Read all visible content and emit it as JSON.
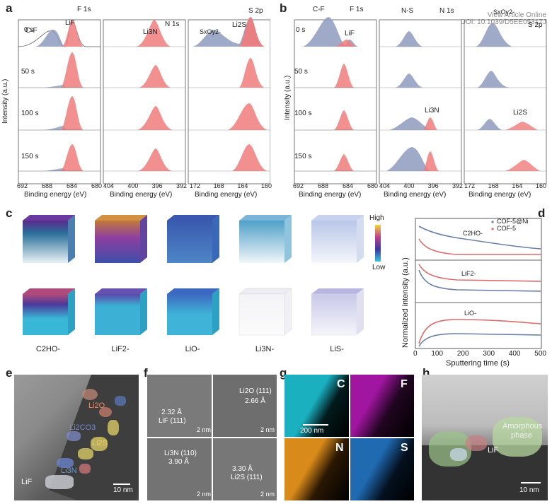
{
  "watermark": {
    "line1": "View Article Online",
    "line2": "DOI: 10.1039/D5EE05317J"
  },
  "panel_a": {
    "label": "a",
    "headers": [
      "F 1s",
      "N 1s",
      "S 2p"
    ],
    "times": [
      "0 s",
      "50 s",
      "100 s",
      "150 s"
    ],
    "peak_labels": {
      "cf": "C-F",
      "lif": "LiF",
      "li3n": "Li3N",
      "sxoy": "SxOy2-",
      "li2s": "Li2S"
    },
    "xlabel": "Binding energy (eV)",
    "ylabel": "Intensity (a.u.)",
    "ticks_f": [
      "692",
      "688",
      "684",
      "680"
    ],
    "ticks_n": [
      "404",
      "400",
      "396",
      "392"
    ],
    "ticks_s": [
      "172",
      "168",
      "164",
      "160"
    ]
  },
  "panel_b": {
    "label": "b",
    "headers": [
      "F 1s",
      "N 1s",
      "S 2p"
    ],
    "times": [
      "0 s",
      "50 s",
      "100 s",
      "150 s"
    ],
    "peak_labels": {
      "cf": "C-F",
      "lif": "LiF",
      "ns": "N-S",
      "li3n": "Li3N",
      "sxoy": "SxOy2-",
      "li2s": "Li2S"
    },
    "xlabel": "Binding energy (eV)",
    "ylabel": "Intensity (a.u.)",
    "ticks_f": [
      "692",
      "688",
      "684",
      "680"
    ],
    "ticks_n": [
      "404",
      "400",
      "396",
      "392"
    ],
    "ticks_s": [
      "172",
      "168",
      "164",
      "160"
    ]
  },
  "panel_c": {
    "label": "c",
    "colorbar_high": "High",
    "colorbar_low": "Low",
    "species": [
      "C2HO-",
      "LiF2-",
      "LiO-",
      "Li3N-",
      "LiS-"
    ]
  },
  "panel_d": {
    "label": "d",
    "ylabel": "Normalized intensity (a.u.)",
    "xlabel": "Sputtering time (s)",
    "legend": [
      "COF-5@Ni",
      "COF-5"
    ],
    "section_labels": [
      "C2HO-",
      "LiF2-",
      "LiO-"
    ],
    "xticks": [
      "0",
      "100",
      "200",
      "300",
      "400",
      "500"
    ],
    "colors": {
      "cof5ni": "#6b7fa8",
      "cof5": "#e06a6a"
    }
  },
  "panel_e": {
    "label": "e",
    "labels": [
      "Li2O",
      "Li2CO3",
      "Li2S",
      "Li3N",
      "LiF"
    ],
    "scale": "10 nm"
  },
  "panel_f": {
    "label": "f",
    "quads": [
      {
        "dist": "2.32 Å",
        "phase": "LiF (111)",
        "scale": "2 nm"
      },
      {
        "phase": "Li2O (111)",
        "dist": "2.66 Å",
        "scale": "2 nm"
      },
      {
        "phase": "Li3N (110)",
        "dist": "3.90 Å",
        "scale": "2 nm"
      },
      {
        "dist": "3.30 Å",
        "phase": "Li2S (111)",
        "scale": "2 nm"
      }
    ]
  },
  "panel_g": {
    "label": "g",
    "elements": [
      "C",
      "F",
      "N",
      "S"
    ],
    "scale": "200 nm"
  },
  "panel_h": {
    "label": "h",
    "labels": [
      "Amorphous",
      "phase",
      "LiF"
    ],
    "scale": "10 nm"
  }
}
